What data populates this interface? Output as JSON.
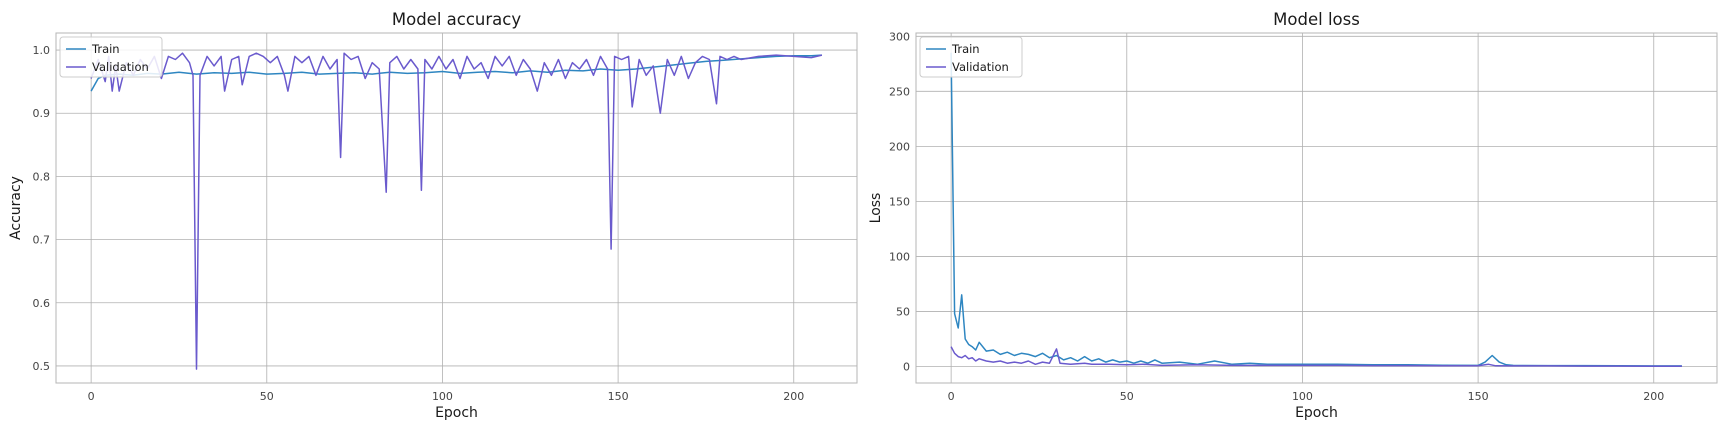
{
  "chart_data": [
    {
      "type": "line",
      "title": "Model accuracy",
      "xlabel": "Epoch",
      "ylabel": "Accuracy",
      "xlim": [
        -10,
        218
      ],
      "ylim": [
        0.473,
        1.027
      ],
      "xticks": [
        0,
        50,
        100,
        150,
        200
      ],
      "xtick_labels": [
        "0",
        "50",
        "100",
        "150",
        "200"
      ],
      "yticks": [
        0.5,
        0.6,
        0.7,
        0.8,
        0.9,
        1.0
      ],
      "ytick_labels": [
        "0.5",
        "0.6",
        "0.7",
        "0.8",
        "0.9",
        "1.0"
      ],
      "grid": true,
      "legend_position": "upper left",
      "series": [
        {
          "name": "Train",
          "color": "#2e86c1",
          "points": [
            [
              0,
              0.935
            ],
            [
              2,
              0.955
            ],
            [
              4,
              0.96
            ],
            [
              8,
              0.962
            ],
            [
              12,
              0.96
            ],
            [
              16,
              0.963
            ],
            [
              20,
              0.962
            ],
            [
              25,
              0.965
            ],
            [
              30,
              0.962
            ],
            [
              35,
              0.964
            ],
            [
              40,
              0.963
            ],
            [
              45,
              0.965
            ],
            [
              50,
              0.962
            ],
            [
              55,
              0.963
            ],
            [
              60,
              0.965
            ],
            [
              65,
              0.962
            ],
            [
              70,
              0.963
            ],
            [
              75,
              0.964
            ],
            [
              80,
              0.962
            ],
            [
              85,
              0.965
            ],
            [
              90,
              0.963
            ],
            [
              95,
              0.964
            ],
            [
              100,
              0.966
            ],
            [
              105,
              0.963
            ],
            [
              110,
              0.965
            ],
            [
              115,
              0.966
            ],
            [
              120,
              0.964
            ],
            [
              125,
              0.967
            ],
            [
              130,
              0.965
            ],
            [
              135,
              0.968
            ],
            [
              140,
              0.967
            ],
            [
              145,
              0.97
            ],
            [
              150,
              0.968
            ],
            [
              155,
              0.97
            ],
            [
              160,
              0.973
            ],
            [
              165,
              0.976
            ],
            [
              170,
              0.979
            ],
            [
              175,
              0.982
            ],
            [
              180,
              0.984
            ],
            [
              185,
              0.986
            ],
            [
              190,
              0.988
            ],
            [
              195,
              0.99
            ],
            [
              200,
              0.991
            ],
            [
              205,
              0.991
            ],
            [
              208,
              0.992
            ]
          ]
        },
        {
          "name": "Validation",
          "color": "#6a5acd",
          "points": [
            [
              0,
              0.955
            ],
            [
              2,
              0.985
            ],
            [
              4,
              0.95
            ],
            [
              5,
              0.99
            ],
            [
              6,
              0.935
            ],
            [
              7,
              0.975
            ],
            [
              8,
              0.935
            ],
            [
              10,
              0.98
            ],
            [
              12,
              0.96
            ],
            [
              14,
              0.985
            ],
            [
              16,
              0.97
            ],
            [
              18,
              0.99
            ],
            [
              20,
              0.955
            ],
            [
              22,
              0.99
            ],
            [
              24,
              0.985
            ],
            [
              26,
              0.995
            ],
            [
              28,
              0.98
            ],
            [
              29,
              0.96
            ],
            [
              30,
              0.495
            ],
            [
              31,
              0.96
            ],
            [
              33,
              0.99
            ],
            [
              35,
              0.975
            ],
            [
              37,
              0.99
            ],
            [
              38,
              0.935
            ],
            [
              40,
              0.985
            ],
            [
              42,
              0.99
            ],
            [
              43,
              0.945
            ],
            [
              45,
              0.99
            ],
            [
              47,
              0.995
            ],
            [
              49,
              0.99
            ],
            [
              51,
              0.98
            ],
            [
              53,
              0.99
            ],
            [
              55,
              0.96
            ],
            [
              56,
              0.935
            ],
            [
              58,
              0.99
            ],
            [
              60,
              0.98
            ],
            [
              62,
              0.99
            ],
            [
              64,
              0.96
            ],
            [
              66,
              0.99
            ],
            [
              68,
              0.97
            ],
            [
              70,
              0.985
            ],
            [
              71,
              0.83
            ],
            [
              72,
              0.995
            ],
            [
              74,
              0.985
            ],
            [
              76,
              0.99
            ],
            [
              78,
              0.955
            ],
            [
              80,
              0.98
            ],
            [
              82,
              0.97
            ],
            [
              84,
              0.775
            ],
            [
              85,
              0.98
            ],
            [
              87,
              0.99
            ],
            [
              89,
              0.97
            ],
            [
              91,
              0.985
            ],
            [
              93,
              0.97
            ],
            [
              94,
              0.778
            ],
            [
              95,
              0.985
            ],
            [
              97,
              0.97
            ],
            [
              99,
              0.99
            ],
            [
              101,
              0.97
            ],
            [
              103,
              0.985
            ],
            [
              105,
              0.955
            ],
            [
              107,
              0.99
            ],
            [
              109,
              0.97
            ],
            [
              111,
              0.98
            ],
            [
              113,
              0.955
            ],
            [
              115,
              0.99
            ],
            [
              117,
              0.975
            ],
            [
              119,
              0.99
            ],
            [
              121,
              0.96
            ],
            [
              123,
              0.985
            ],
            [
              125,
              0.97
            ],
            [
              127,
              0.935
            ],
            [
              129,
              0.98
            ],
            [
              131,
              0.96
            ],
            [
              133,
              0.985
            ],
            [
              135,
              0.955
            ],
            [
              137,
              0.98
            ],
            [
              139,
              0.97
            ],
            [
              141,
              0.985
            ],
            [
              143,
              0.96
            ],
            [
              145,
              0.99
            ],
            [
              147,
              0.97
            ],
            [
              148,
              0.685
            ],
            [
              149,
              0.99
            ],
            [
              151,
              0.985
            ],
            [
              153,
              0.99
            ],
            [
              154,
              0.91
            ],
            [
              156,
              0.985
            ],
            [
              158,
              0.96
            ],
            [
              160,
              0.975
            ],
            [
              162,
              0.9
            ],
            [
              164,
              0.985
            ],
            [
              166,
              0.96
            ],
            [
              168,
              0.99
            ],
            [
              170,
              0.955
            ],
            [
              172,
              0.98
            ],
            [
              174,
              0.99
            ],
            [
              176,
              0.985
            ],
            [
              178,
              0.915
            ],
            [
              179,
              0.99
            ],
            [
              181,
              0.985
            ],
            [
              183,
              0.99
            ],
            [
              185,
              0.985
            ],
            [
              190,
              0.99
            ],
            [
              195,
              0.992
            ],
            [
              200,
              0.99
            ],
            [
              205,
              0.988
            ],
            [
              208,
              0.992
            ]
          ]
        }
      ]
    },
    {
      "type": "line",
      "title": "Model loss",
      "xlabel": "Epoch",
      "ylabel": "Loss",
      "xlim": [
        -10,
        218
      ],
      "ylim": [
        -15,
        303
      ],
      "xticks": [
        0,
        50,
        100,
        150,
        200
      ],
      "xtick_labels": [
        "0",
        "50",
        "100",
        "150",
        "200"
      ],
      "yticks": [
        0,
        50,
        100,
        150,
        200,
        250,
        300
      ],
      "ytick_labels": [
        "0",
        "50",
        "100",
        "150",
        "200",
        "250",
        "300"
      ],
      "grid": true,
      "legend_position": "upper left",
      "series": [
        {
          "name": "Train",
          "color": "#2e86c1",
          "points": [
            [
              0,
              285
            ],
            [
              1,
              48
            ],
            [
              2,
              35
            ],
            [
              3,
              65
            ],
            [
              4,
              25
            ],
            [
              5,
              20
            ],
            [
              6,
              18
            ],
            [
              7,
              15
            ],
            [
              8,
              22
            ],
            [
              10,
              14
            ],
            [
              12,
              15
            ],
            [
              14,
              11
            ],
            [
              16,
              13
            ],
            [
              18,
              10
            ],
            [
              20,
              12
            ],
            [
              22,
              11
            ],
            [
              24,
              9
            ],
            [
              26,
              12
            ],
            [
              28,
              8
            ],
            [
              30,
              10
            ],
            [
              32,
              6
            ],
            [
              34,
              8
            ],
            [
              36,
              5
            ],
            [
              38,
              9
            ],
            [
              40,
              5
            ],
            [
              42,
              7
            ],
            [
              44,
              4
            ],
            [
              46,
              6
            ],
            [
              48,
              4
            ],
            [
              50,
              5
            ],
            [
              52,
              3
            ],
            [
              54,
              5
            ],
            [
              56,
              3
            ],
            [
              58,
              6
            ],
            [
              60,
              3
            ],
            [
              65,
              4
            ],
            [
              70,
              2
            ],
            [
              75,
              5
            ],
            [
              80,
              2
            ],
            [
              85,
              3
            ],
            [
              90,
              2
            ],
            [
              95,
              2
            ],
            [
              100,
              2
            ],
            [
              110,
              2
            ],
            [
              120,
              1.5
            ],
            [
              130,
              1.5
            ],
            [
              140,
              1.2
            ],
            [
              150,
              1
            ],
            [
              152,
              4
            ],
            [
              154,
              10
            ],
            [
              156,
              4
            ],
            [
              158,
              1.5
            ],
            [
              160,
              1
            ],
            [
              170,
              0.8
            ],
            [
              180,
              0.8
            ],
            [
              190,
              0.6
            ],
            [
              200,
              0.5
            ],
            [
              208,
              0.5
            ]
          ]
        },
        {
          "name": "Validation",
          "color": "#6a5acd",
          "points": [
            [
              0,
              18
            ],
            [
              1,
              12
            ],
            [
              2,
              9
            ],
            [
              3,
              8
            ],
            [
              4,
              10
            ],
            [
              5,
              7
            ],
            [
              6,
              8
            ],
            [
              7,
              5
            ],
            [
              8,
              7
            ],
            [
              10,
              5
            ],
            [
              12,
              4
            ],
            [
              14,
              5
            ],
            [
              16,
              3
            ],
            [
              18,
              4
            ],
            [
              20,
              3
            ],
            [
              22,
              5
            ],
            [
              24,
              2
            ],
            [
              26,
              4
            ],
            [
              28,
              3
            ],
            [
              30,
              16
            ],
            [
              31,
              3
            ],
            [
              34,
              2
            ],
            [
              38,
              3
            ],
            [
              40,
              2
            ],
            [
              45,
              2
            ],
            [
              50,
              1.5
            ],
            [
              55,
              2
            ],
            [
              60,
              1
            ],
            [
              70,
              1.5
            ],
            [
              80,
              1
            ],
            [
              90,
              1
            ],
            [
              100,
              1
            ],
            [
              110,
              1
            ],
            [
              120,
              0.8
            ],
            [
              130,
              0.8
            ],
            [
              140,
              0.7
            ],
            [
              150,
              0.6
            ],
            [
              153,
              2
            ],
            [
              155,
              0.6
            ],
            [
              160,
              0.5
            ],
            [
              170,
              0.5
            ],
            [
              180,
              0.4
            ],
            [
              190,
              0.4
            ],
            [
              200,
              0.3
            ],
            [
              208,
              0.3
            ]
          ]
        }
      ]
    }
  ]
}
